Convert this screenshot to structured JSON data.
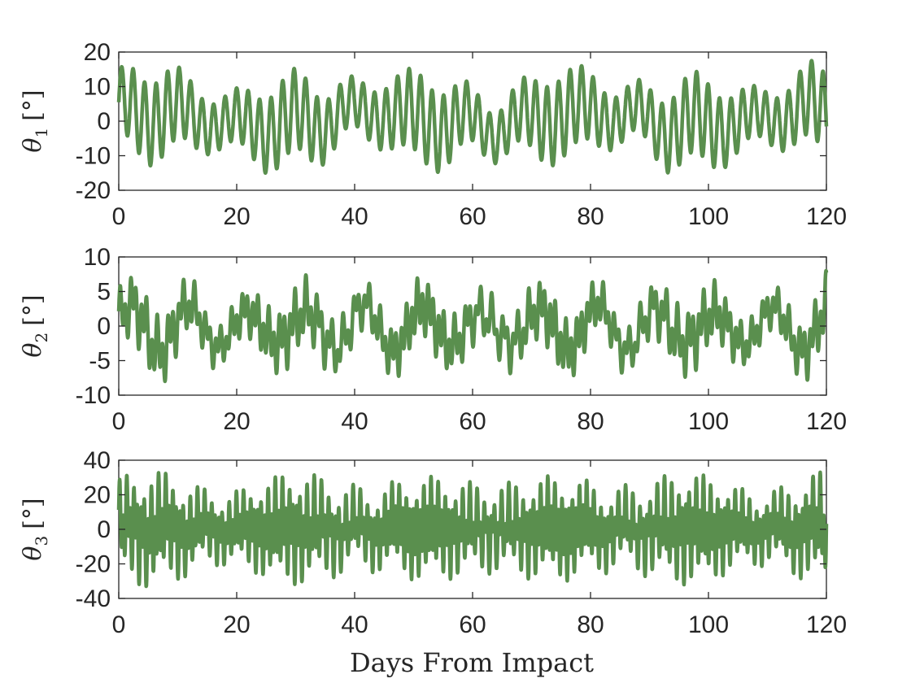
{
  "figure": {
    "xlabel": "Days From Impact"
  },
  "chart_data": [
    {
      "type": "line",
      "ylabel_symbol": "θ",
      "ylabel_sub": "1",
      "ylabel_unit": "[°]",
      "xlim": [
        0,
        120
      ],
      "ylim": [
        -20,
        20
      ],
      "xticks": [
        0,
        20,
        40,
        60,
        80,
        100,
        120
      ],
      "yticks": [
        -20,
        -10,
        0,
        10,
        20
      ],
      "color": "#5a8f4e",
      "signal": {
        "components": [
          {
            "amp": 9.5,
            "period": 1.95,
            "phase": 0.0
          },
          {
            "amp": 3.5,
            "period": 9.7,
            "phase": 1.1
          },
          {
            "amp": 2.0,
            "period": 37.0,
            "phase": 0.6
          }
        ],
        "peak_range": [
          -15,
          17.5
        ]
      }
    },
    {
      "type": "line",
      "ylabel_symbol": "θ",
      "ylabel_sub": "2",
      "ylabel_unit": "[°]",
      "xlim": [
        0,
        120
      ],
      "ylim": [
        -10,
        10
      ],
      "xticks": [
        0,
        20,
        40,
        60,
        80,
        100,
        120
      ],
      "yticks": [
        -10,
        -5,
        0,
        5,
        10
      ],
      "color": "#5a8f4e",
      "signal": {
        "components": [
          {
            "amp": 2.2,
            "period": 0.9,
            "phase": 0.0
          },
          {
            "amp": 1.8,
            "period": 2.1,
            "phase": 0.7
          },
          {
            "amp": 2.6,
            "period": 9.9,
            "phase": 0.3
          }
        ],
        "peak_range": [
          -8,
          8
        ]
      }
    },
    {
      "type": "line",
      "ylabel_symbol": "θ",
      "ylabel_sub": "3",
      "ylabel_unit": "[°]",
      "xlim": [
        0,
        120
      ],
      "ylim": [
        -40,
        40
      ],
      "xticks": [
        0,
        20,
        40,
        60,
        80,
        100,
        120
      ],
      "yticks": [
        -40,
        -20,
        0,
        20,
        40
      ],
      "color": "#5a8f4e",
      "signal": {
        "components": [
          {
            "amp": 16.0,
            "period": 0.6,
            "phase": 0.0
          },
          {
            "amp": 11.0,
            "period": 1.32,
            "phase": 0.9
          },
          {
            "amp": 5.0,
            "period": 6.5,
            "phase": 0.4
          }
        ],
        "peak_range": [
          -33,
          33
        ]
      }
    }
  ]
}
